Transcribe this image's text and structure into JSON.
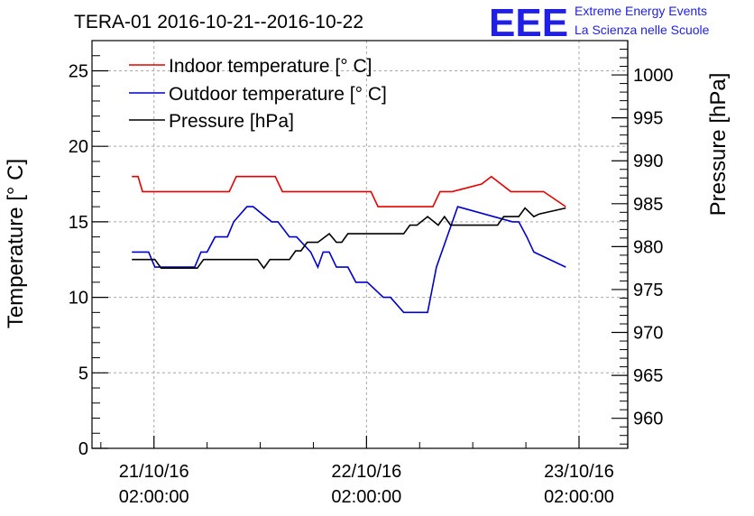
{
  "chart_data": {
    "type": "line",
    "title": "TERA-01 2016-10-21--2016-10-22",
    "logo": {
      "text": "EEE",
      "line1": "Extreme Energy Events",
      "line2": "La Scienza nelle Scuole",
      "color": "#1f1fe6"
    },
    "ylabel_left": "Temperature [° C]",
    "ylabel_right": "Pressure [hPa]",
    "ylim_left": [
      0,
      27
    ],
    "ylim_right": [
      956.5,
      1004
    ],
    "xlim_hours": [
      -7.0,
      53.5
    ],
    "yticks_left": [
      "0",
      "5",
      "10",
      "15",
      "20",
      "25"
    ],
    "yticks_right": [
      "960",
      "965",
      "970",
      "975",
      "980",
      "985",
      "990",
      "995",
      "1000"
    ],
    "xticks": [
      {
        "hour": 0,
        "line1": "21/10/16",
        "line2": "02:00:00"
      },
      {
        "hour": 24,
        "line1": "22/10/16",
        "line2": "02:00:00"
      },
      {
        "hour": 48,
        "line1": "23/10/16",
        "line2": "02:00:00"
      }
    ],
    "grid": true,
    "legend_position": "top-left",
    "series": [
      {
        "name": "Indoor temperature [° C]",
        "color": "#e60000",
        "axis": "left",
        "x": [
          -2.5,
          -1.8,
          -1.3,
          8.5,
          9.3,
          13.7,
          14.5,
          24.5,
          25.3,
          31.5,
          32.3,
          33.7,
          37.0,
          38.1,
          40.3,
          44.0,
          46.5
        ],
        "y": [
          18,
          18,
          17,
          17,
          18,
          18,
          17,
          17,
          16,
          16,
          17,
          17,
          17.5,
          18,
          17,
          17,
          16
        ]
      },
      {
        "name": "Outdoor temperature [° C]",
        "color": "#0000d0",
        "axis": "left",
        "x": [
          -2.5,
          -0.6,
          0.1,
          4.6,
          5.3,
          6.0,
          6.9,
          8.3,
          9.0,
          10.5,
          11.2,
          13.3,
          14.0,
          15.3,
          16.1,
          17.7,
          18.5,
          19.1,
          19.8,
          20.6,
          21.9,
          22.8,
          24.1,
          25.9,
          26.7,
          28.2,
          30.9,
          31.9,
          34.3,
          40.5,
          41.2,
          42.1,
          42.9,
          46.5
        ],
        "y": [
          13,
          13,
          12,
          12,
          13,
          13,
          14,
          14,
          15,
          16,
          16,
          15,
          15,
          14,
          14,
          13,
          12,
          13,
          13,
          12,
          12,
          11,
          11,
          10,
          10,
          9,
          9,
          12,
          16,
          15,
          15,
          14,
          13,
          12
        ]
      },
      {
        "name": "Pressure [hPa]",
        "color": "#000000",
        "axis": "right",
        "x": [
          -2.5,
          0.1,
          0.8,
          4.9,
          5.6,
          11.7,
          12.4,
          13.1,
          15.3,
          16.0,
          16.6,
          17.3,
          18.5,
          19.8,
          20.6,
          21.2,
          21.9,
          23.1,
          23.8,
          28.2,
          28.9,
          29.7,
          30.9,
          32.1,
          32.8,
          33.5,
          38.8,
          39.5,
          40.6,
          41.2,
          41.9,
          42.9,
          43.5,
          46.5
        ],
        "y": [
          978.5,
          978.5,
          977.5,
          977.5,
          978.5,
          978.5,
          977.5,
          978.5,
          978.5,
          979.5,
          979.5,
          980.5,
          980.5,
          981.5,
          980.5,
          980.5,
          981.5,
          981.5,
          981.5,
          981.5,
          982.5,
          982.5,
          983.5,
          982.5,
          983.5,
          982.5,
          982.5,
          983.5,
          983.5,
          983.5,
          984.5,
          983.5,
          983.8,
          984.5
        ]
      }
    ]
  }
}
